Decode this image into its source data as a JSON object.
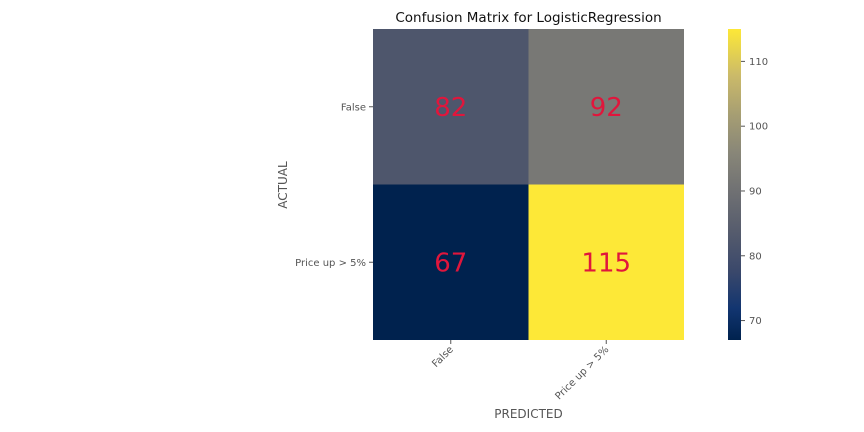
{
  "chart_data": {
    "type": "heatmap",
    "title": "Confusion Matrix for LogisticRegression",
    "xlabel": "PREDICTED",
    "ylabel": "ACTUAL",
    "row_labels": [
      "False",
      "Price up > 5%"
    ],
    "col_labels": [
      "False",
      "Price up > 5%"
    ],
    "values": [
      [
        82,
        92
      ],
      [
        67,
        115
      ]
    ],
    "colormap": "cividis",
    "colorbar": {
      "range": [
        67,
        115
      ],
      "ticks": [
        70,
        80,
        90,
        100,
        110
      ]
    },
    "annotation_color": "#e0163c",
    "grid": false
  }
}
